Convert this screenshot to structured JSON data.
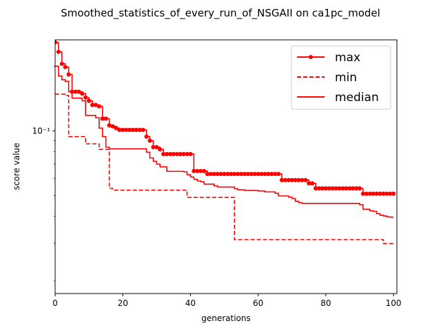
{
  "chart_data": {
    "type": "line",
    "title": "Smoothed_statistics_of_every_run_of_NSGAII on ca1pc_model",
    "xlabel": "generations",
    "ylabel": "score value",
    "xlim": [
      0,
      101
    ],
    "ylim": [
      0.0175,
      0.265
    ],
    "yscale": "log",
    "x_ticks": [
      0,
      20,
      40,
      60,
      80,
      100
    ],
    "y_ticks": [
      {
        "value": 0.1,
        "label": "10⁻¹"
      }
    ],
    "grid": false,
    "legend": {
      "location": "upper-right",
      "entries": [
        "max",
        "min",
        "median"
      ]
    },
    "series": [
      {
        "name": "max",
        "color": "#ff0000",
        "style": "solid",
        "marker": "circle",
        "step": true,
        "x": [
          0,
          1,
          2,
          3,
          4,
          5,
          8,
          9,
          10,
          11,
          13,
          14,
          15,
          16,
          17,
          18,
          19,
          27,
          28,
          29,
          30,
          31,
          32,
          33,
          41,
          42,
          44,
          45,
          66,
          67,
          74,
          75,
          76,
          77,
          78,
          79,
          90,
          91,
          92,
          93,
          100
        ],
        "y": [
          0.258,
          0.233,
          0.205,
          0.198,
          0.183,
          0.152,
          0.149,
          0.143,
          0.138,
          0.132,
          0.13,
          0.114,
          0.114,
          0.106,
          0.105,
          0.103,
          0.101,
          0.094,
          0.09,
          0.084,
          0.084,
          0.082,
          0.078,
          0.078,
          0.065,
          0.065,
          0.065,
          0.063,
          0.063,
          0.059,
          0.059,
          0.057,
          0.057,
          0.054,
          0.054,
          0.054,
          0.054,
          0.051,
          0.051,
          0.051,
          0.051
        ]
      },
      {
        "name": "min",
        "color": "#ff0000",
        "style": "dashed",
        "marker": "none",
        "step": true,
        "x": [
          0,
          3,
          4,
          8,
          9,
          12,
          13,
          15,
          16,
          17,
          38,
          39,
          52,
          53,
          96,
          97,
          100
        ],
        "y": [
          0.148,
          0.146,
          0.094,
          0.094,
          0.087,
          0.087,
          0.082,
          0.082,
          0.054,
          0.053,
          0.053,
          0.049,
          0.049,
          0.0312,
          0.0312,
          0.0299,
          0.0299
        ]
      },
      {
        "name": "median",
        "color": "#ff0000",
        "style": "solid",
        "marker": "none",
        "step": true,
        "x": [
          0,
          1,
          2,
          3,
          4,
          5,
          8,
          9,
          12,
          13,
          14,
          15,
          16,
          27,
          28,
          29,
          30,
          31,
          32,
          33,
          38,
          39,
          40,
          41,
          42,
          43,
          44,
          45,
          47,
          48,
          52,
          53,
          54,
          55,
          56,
          57,
          60,
          61,
          62,
          63,
          64,
          65,
          66,
          67,
          69,
          70,
          71,
          72,
          73,
          74,
          90,
          91,
          93,
          94,
          95,
          96,
          97,
          98,
          99,
          100
        ],
        "y": [
          0.2,
          0.18,
          0.173,
          0.17,
          0.152,
          0.142,
          0.138,
          0.118,
          0.115,
          0.103,
          0.094,
          0.084,
          0.0825,
          0.0795,
          0.0748,
          0.0722,
          0.07,
          0.068,
          0.068,
          0.0648,
          0.0645,
          0.0625,
          0.061,
          0.0595,
          0.0585,
          0.058,
          0.0565,
          0.0565,
          0.0555,
          0.0548,
          0.0548,
          0.0538,
          0.0532,
          0.0532,
          0.0528,
          0.0528,
          0.0525,
          0.0525,
          0.052,
          0.052,
          0.052,
          0.0512,
          0.0498,
          0.0498,
          0.0492,
          0.0484,
          0.047,
          0.0463,
          0.046,
          0.046,
          0.0453,
          0.0432,
          0.0425,
          0.0422,
          0.0412,
          0.0405,
          0.0402,
          0.0398,
          0.0397,
          0.0397
        ]
      }
    ]
  }
}
